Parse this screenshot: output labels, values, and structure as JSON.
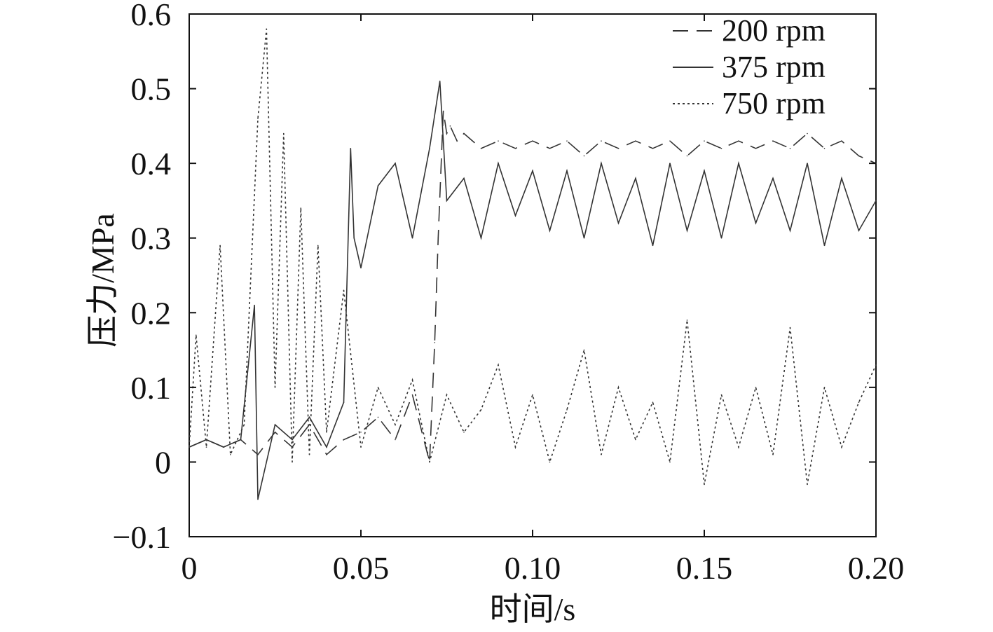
{
  "chart_data": {
    "type": "line",
    "title": "",
    "xlabel": "时间/s",
    "ylabel": "压力/MPa",
    "xlim": [
      0,
      0.2
    ],
    "ylim": [
      -0.1,
      0.6
    ],
    "xticks": [
      0,
      0.05,
      0.1,
      0.15,
      0.2
    ],
    "xtick_labels": [
      "0",
      "0.05",
      "0.10",
      "0.15",
      "0.20"
    ],
    "yticks": [
      -0.1,
      0,
      0.1,
      0.2,
      0.3,
      0.4,
      0.5,
      0.6
    ],
    "ytick_labels": [
      "−0.1",
      "0",
      "0.1",
      "0.2",
      "0.3",
      "0.4",
      "0.5",
      "0.6"
    ],
    "grid": false,
    "legend_position": "top-right",
    "series": [
      {
        "name": "200 rpm",
        "style": "dashed",
        "color": "#333333",
        "x": [
          0,
          0.005,
          0.01,
          0.015,
          0.02,
          0.025,
          0.03,
          0.035,
          0.04,
          0.045,
          0.05,
          0.055,
          0.06,
          0.065,
          0.07,
          0.0715,
          0.0725,
          0.074,
          0.075,
          0.076,
          0.078,
          0.08,
          0.085,
          0.09,
          0.095,
          0.1,
          0.105,
          0.11,
          0.115,
          0.12,
          0.125,
          0.13,
          0.135,
          0.14,
          0.145,
          0.15,
          0.155,
          0.16,
          0.165,
          0.17,
          0.175,
          0.18,
          0.185,
          0.19,
          0.195,
          0.2
        ],
        "y": [
          0.02,
          0.03,
          0.02,
          0.03,
          0.01,
          0.04,
          0.02,
          0.05,
          0.01,
          0.03,
          0.04,
          0.06,
          0.03,
          0.09,
          0.0,
          0.16,
          0.3,
          0.47,
          0.44,
          0.45,
          0.43,
          0.44,
          0.42,
          0.43,
          0.42,
          0.43,
          0.42,
          0.43,
          0.41,
          0.43,
          0.42,
          0.43,
          0.42,
          0.43,
          0.41,
          0.43,
          0.42,
          0.43,
          0.42,
          0.43,
          0.42,
          0.44,
          0.42,
          0.43,
          0.41,
          0.4
        ]
      },
      {
        "name": "375 rpm",
        "style": "solid",
        "color": "#333333",
        "x": [
          0,
          0.005,
          0.01,
          0.015,
          0.019,
          0.02,
          0.025,
          0.03,
          0.035,
          0.04,
          0.045,
          0.047,
          0.048,
          0.05,
          0.055,
          0.06,
          0.065,
          0.07,
          0.073,
          0.075,
          0.08,
          0.085,
          0.09,
          0.095,
          0.1,
          0.105,
          0.11,
          0.115,
          0.12,
          0.125,
          0.13,
          0.135,
          0.14,
          0.145,
          0.15,
          0.155,
          0.16,
          0.165,
          0.17,
          0.175,
          0.18,
          0.185,
          0.19,
          0.195,
          0.2
        ],
        "y": [
          0.02,
          0.03,
          0.02,
          0.03,
          0.21,
          -0.05,
          0.05,
          0.03,
          0.06,
          0.02,
          0.08,
          0.42,
          0.3,
          0.26,
          0.37,
          0.4,
          0.3,
          0.42,
          0.51,
          0.35,
          0.38,
          0.3,
          0.4,
          0.33,
          0.39,
          0.31,
          0.39,
          0.3,
          0.4,
          0.32,
          0.38,
          0.29,
          0.4,
          0.31,
          0.39,
          0.3,
          0.4,
          0.32,
          0.38,
          0.31,
          0.4,
          0.29,
          0.38,
          0.31,
          0.35
        ]
      },
      {
        "name": "750 rpm",
        "style": "dotted",
        "color": "#333333",
        "x": [
          0,
          0.002,
          0.005,
          0.009,
          0.012,
          0.016,
          0.02,
          0.0225,
          0.025,
          0.0275,
          0.03,
          0.0325,
          0.035,
          0.0375,
          0.04,
          0.045,
          0.05,
          0.055,
          0.06,
          0.065,
          0.07,
          0.075,
          0.08,
          0.085,
          0.09,
          0.095,
          0.1,
          0.105,
          0.11,
          0.115,
          0.12,
          0.125,
          0.13,
          0.135,
          0.14,
          0.145,
          0.15,
          0.155,
          0.16,
          0.165,
          0.17,
          0.175,
          0.18,
          0.185,
          0.19,
          0.195,
          0.2
        ],
        "y": [
          0.02,
          0.17,
          0.02,
          0.29,
          0.01,
          0.05,
          0.46,
          0.58,
          0.1,
          0.44,
          0.0,
          0.34,
          0.01,
          0.29,
          0.04,
          0.23,
          0.02,
          0.1,
          0.05,
          0.11,
          0.0,
          0.09,
          0.04,
          0.07,
          0.13,
          0.02,
          0.09,
          0.0,
          0.07,
          0.15,
          0.01,
          0.1,
          0.03,
          0.08,
          0.0,
          0.19,
          -0.03,
          0.09,
          0.02,
          0.1,
          0.01,
          0.18,
          -0.03,
          0.1,
          0.02,
          0.08,
          0.13
        ]
      }
    ]
  }
}
